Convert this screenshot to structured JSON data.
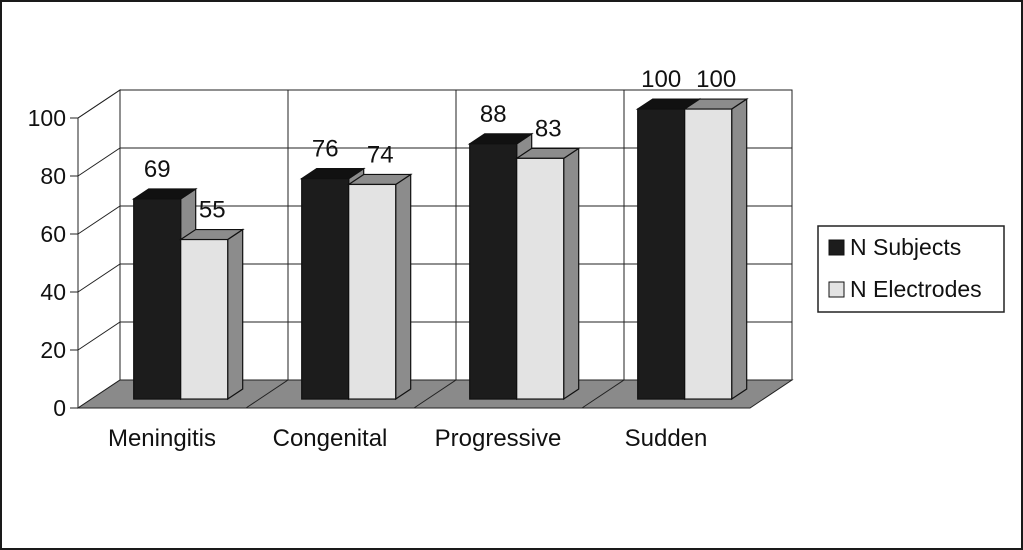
{
  "chart_data": {
    "type": "bar",
    "categories": [
      "Meningitis",
      "Congenital",
      "Progressive",
      "Sudden"
    ],
    "series": [
      {
        "name": "N Subjects",
        "values": [
          69,
          76,
          88,
          100
        ],
        "color": "#1c1c1c"
      },
      {
        "name": "N Electrodes",
        "values": [
          55,
          74,
          83,
          100
        ],
        "color": "#e3e3e3"
      }
    ],
    "yticks": [
      0,
      20,
      40,
      60,
      80,
      100
    ],
    "ylim": [
      0,
      100
    ],
    "grid": true,
    "legend_position": "right",
    "style": "3d",
    "floor_color": "#8a8a8a",
    "side_color": "#8c8c8c"
  }
}
